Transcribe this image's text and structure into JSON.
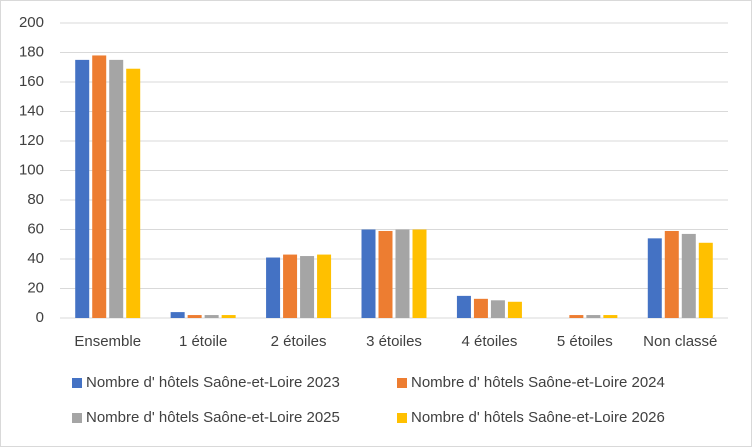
{
  "chart_data": {
    "type": "bar",
    "categories": [
      "Ensemble",
      "1 étoile",
      "2 étoiles",
      "3 étoiles",
      "4 étoiles",
      "5 étoiles",
      "Non classé"
    ],
    "series": [
      {
        "name": "Nombre d' hôtels Saône-et-Loire 2023",
        "color": "#4472c4",
        "values": [
          175,
          4,
          41,
          60,
          15,
          0,
          54
        ]
      },
      {
        "name": "Nombre d' hôtels Saône-et-Loire 2024",
        "color": "#ed7d31",
        "values": [
          178,
          2,
          43,
          59,
          13,
          2,
          59
        ]
      },
      {
        "name": "Nombre d' hôtels Saône-et-Loire 2025",
        "color": "#a5a5a5",
        "values": [
          175,
          2,
          42,
          60,
          12,
          2,
          57
        ]
      },
      {
        "name": "Nombre d' hôtels Saône-et-Loire 2026",
        "color": "#ffc000",
        "values": [
          169,
          2,
          43,
          60,
          11,
          2,
          51
        ]
      }
    ],
    "ylim": [
      0,
      200
    ],
    "yticks": [
      0,
      20,
      40,
      60,
      80,
      100,
      120,
      140,
      160,
      180,
      200
    ],
    "grid": true,
    "legend": "bottom"
  }
}
